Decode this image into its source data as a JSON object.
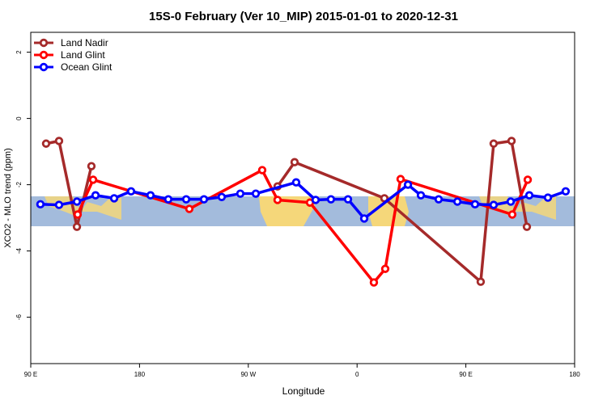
{
  "chart_data": {
    "type": "line",
    "title": "15S-0 February (Ver 10_MIP)   2015-01-01 to 2020-12-31",
    "xlabel": "Longitude",
    "ylabel": "XCO2 - MLO trend (ppm)",
    "xlim": [
      90,
      540
    ],
    "ylim": [
      -7.4,
      2.6
    ],
    "xticks": [
      {
        "value": 90,
        "label": "90 E"
      },
      180,
      {
        "value": 270,
        "label": "90 W"
      },
      {
        "value": 360,
        "label": "0"
      },
      {
        "value": 450,
        "label": "90 E"
      },
      {
        "value": 540,
        "label": "180"
      }
    ],
    "yticks": [
      2,
      0,
      -2,
      -4,
      -6
    ],
    "legend": "top-left",
    "series": [
      {
        "name": "Land Nadir",
        "color": "#a52a2a",
        "x": [
          102.7,
          113.4,
          128.2,
          140.2,
          280.9,
          294.2,
          308.3,
          382.6,
          462.3,
          473.0,
          487.8,
          500.5
        ],
        "values": [
          -0.76,
          -0.68,
          -3.27,
          -1.44,
          null,
          -2.05,
          -1.32,
          -2.41,
          -4.93,
          -0.76,
          -0.68,
          -3.27
        ]
      },
      {
        "name": "Land Glint",
        "color": "#ff0000",
        "x": [
          128.8,
          141.6,
          221.2,
          281.5,
          294.2,
          321.0,
          373.9,
          383.3,
          396.0,
          488.4,
          501.2
        ],
        "values": [
          -2.9,
          -1.85,
          -2.73,
          -1.56,
          -2.46,
          -2.54,
          -4.95,
          -4.54,
          -1.83,
          -2.9,
          -1.85
        ]
      },
      {
        "name": "Ocean Glint",
        "color": "#0000ff",
        "x": [
          98.0,
          113.4,
          128.2,
          143.6,
          159.0,
          173.0,
          189.1,
          203.8,
          218.6,
          233.3,
          248.0,
          263.4,
          276.2,
          309.6,
          325.7,
          338.4,
          352.5,
          365.9,
          402.1,
          412.8,
          427.5,
          443.0,
          457.6,
          473.0,
          487.1,
          502.5,
          517.9,
          532.6
        ],
        "values": [
          -2.59,
          -2.61,
          -2.51,
          -2.32,
          -2.41,
          -2.2,
          -2.32,
          -2.44,
          -2.44,
          -2.44,
          -2.37,
          -2.27,
          -2.27,
          -1.93,
          -2.46,
          -2.44,
          -2.44,
          -3.02,
          -2.0,
          -2.32,
          -2.44,
          -2.51,
          -2.59,
          -2.61,
          -2.51,
          -2.32,
          -2.39,
          -2.2
        ]
      }
    ]
  }
}
